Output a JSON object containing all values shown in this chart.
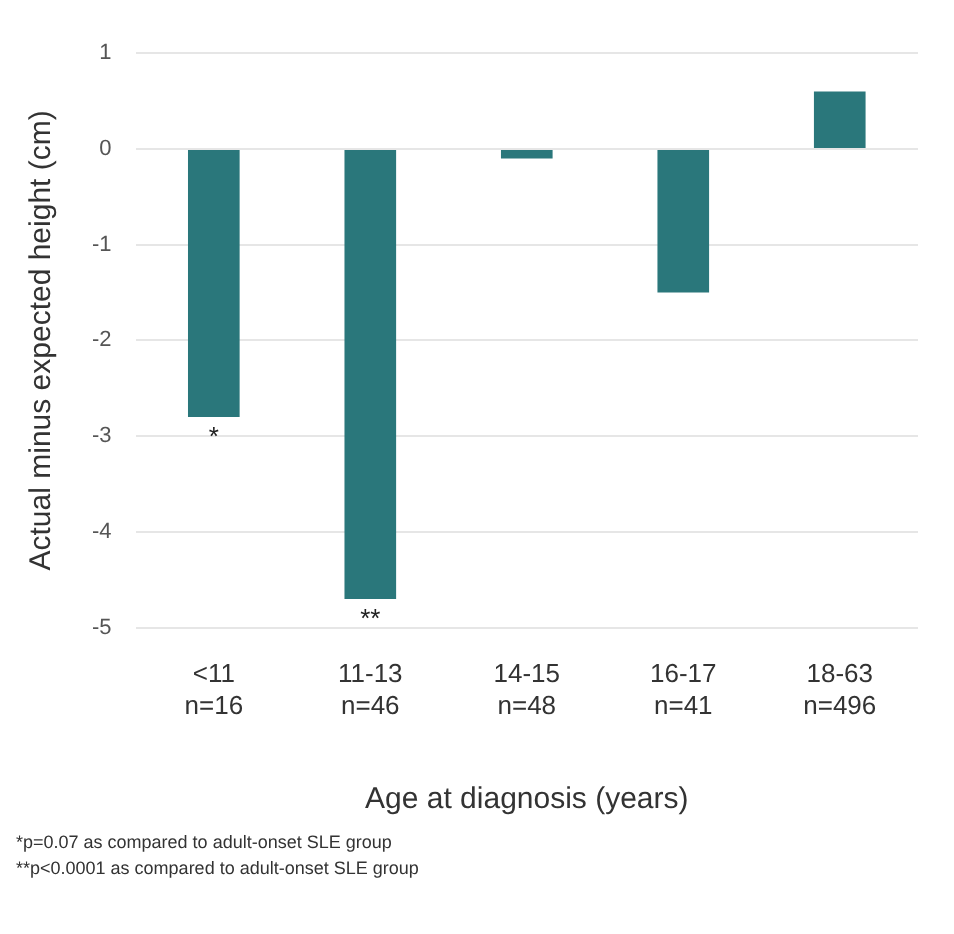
{
  "chart_data": {
    "type": "bar",
    "xlabel": "Age at diagnosis (years)",
    "ylabel": "Actual minus expected height (cm)",
    "categories": [
      "<11\nn=16",
      "11-13\nn=46",
      "14-15\nn=48",
      "16-17\nn=41",
      "18-63\nn=496"
    ],
    "values": [
      -2.8,
      -4.7,
      -0.1,
      -1.5,
      0.6
    ],
    "color": "#2a777b",
    "ylim": [
      -5,
      1
    ],
    "yticks": [
      -5,
      -4,
      -3,
      -2,
      -1,
      0,
      1
    ],
    "grid": "y",
    "annotations": [
      {
        "text": "*",
        "x": "<11\nn=16",
        "y": -2.8
      },
      {
        "text": "**",
        "x": "11-13\nn=46",
        "y": -4.7
      },
      "*p=0.07 as compared to adult-onset SLE group",
      "**p<0.0001 as compared to adult-onset SLE group"
    ]
  }
}
